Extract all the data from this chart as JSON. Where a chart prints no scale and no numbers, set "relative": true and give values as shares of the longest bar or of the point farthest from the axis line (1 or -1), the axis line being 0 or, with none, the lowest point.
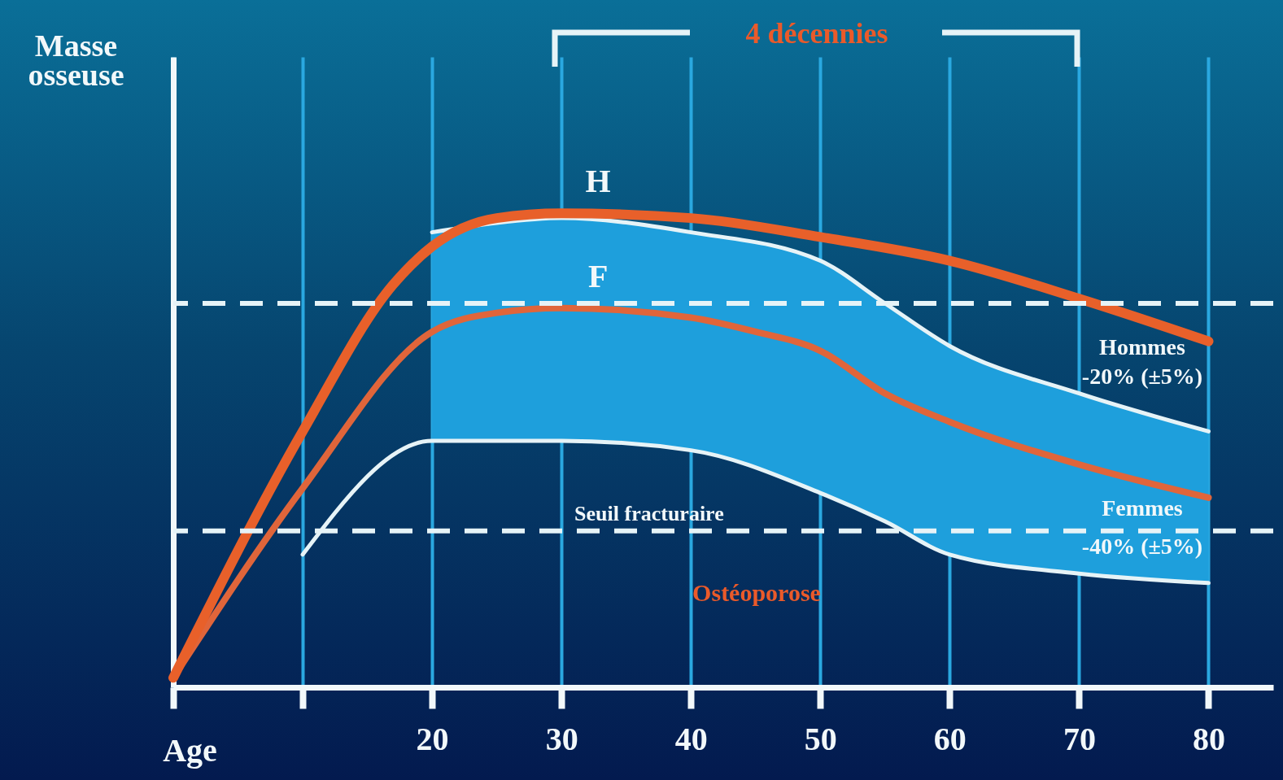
{
  "chart_data": {
    "type": "line",
    "relative": true,
    "xlabel": "Age",
    "ylabel": "Masse osseuse",
    "xlim": [
      0,
      85
    ],
    "xticks": [
      {
        "value": 0,
        "label": null
      },
      {
        "value": 10,
        "label": null
      },
      20,
      30,
      40,
      50,
      60,
      70,
      80
    ],
    "grid": "x",
    "marker": "none",
    "series": [
      {
        "color": "#e6f3f7",
        "x": [
          20,
          25,
          30,
          40,
          50,
          55,
          60,
          70,
          80
        ],
        "values": [
          0.96,
          0.98,
          0.99,
          0.96,
          0.9,
          0.81,
          0.72,
          0.62,
          0.54
        ],
        "lower": [
          0.52,
          0.52,
          0.52,
          0.5,
          0.41,
          0.35,
          0.28,
          0.24,
          0.22
        ],
        "upper": [
          0.96,
          0.98,
          0.99,
          0.96,
          0.9,
          0.81,
          0.72,
          0.62,
          0.54
        ]
      },
      {
        "color": "#e6f3f7",
        "x": [
          10,
          20,
          30,
          40,
          50,
          55,
          60,
          70,
          80
        ],
        "values": [
          0.28,
          0.52,
          0.52,
          0.5,
          0.41,
          0.35,
          0.28,
          0.24,
          0.22
        ]
      },
      {
        "name": "F",
        "color": "#e0653a",
        "x": [
          0,
          10,
          20,
          25,
          30,
          40,
          45,
          50,
          55,
          60,
          70,
          80
        ],
        "values": [
          0.02,
          0.42,
          0.75,
          0.79,
          0.8,
          0.78,
          0.75,
          0.71,
          0.62,
          0.56,
          0.47,
          0.4
        ]
      },
      {
        "name": "H",
        "color": "#e8602a",
        "x": [
          0,
          10,
          17,
          20,
          25,
          30,
          40,
          50,
          60,
          70,
          80
        ],
        "values": [
          0.02,
          0.54,
          0.85,
          0.93,
          0.99,
          1,
          0.99,
          0.95,
          0.9,
          0.82,
          0.73
        ]
      }
    ],
    "ref_lines": [
      {
        "axis": "y",
        "value": 0.81,
        "line_style": "dashed",
        "color": "#e6f3f7"
      },
      {
        "axis": "y",
        "value": 0.33,
        "label": "Seuil fracturaire",
        "line_style": "dashed",
        "color": "#e6f3f7"
      }
    ],
    "annotations": [
      "4 décennies",
      "Hommes",
      "-20% (±5%)",
      "Femmes",
      "-40% (±5%)",
      "Ostéoporose"
    ]
  }
}
